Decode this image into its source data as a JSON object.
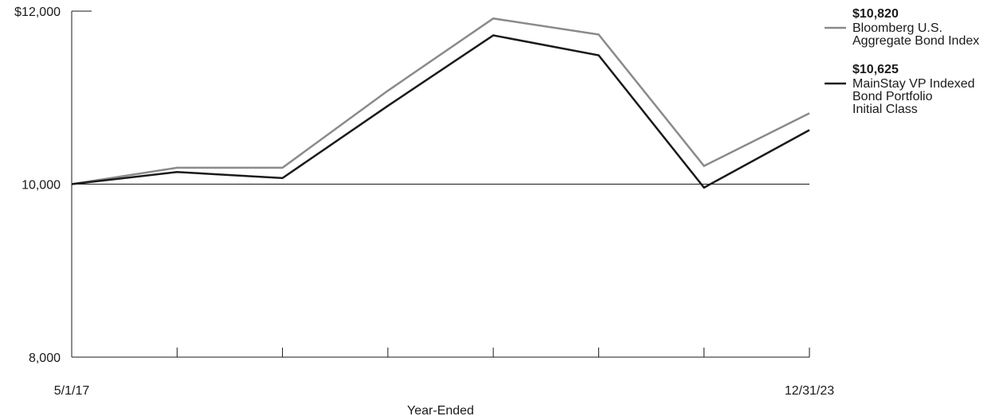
{
  "chart_data": {
    "type": "line",
    "title": "",
    "xlabel": "Year-Ended",
    "ylabel": "",
    "x_start_label": "5/1/17",
    "x_end_label": "12/31/23",
    "x_points": 8,
    "ylim": [
      8000,
      12000
    ],
    "y_ticks": [
      {
        "value": 12000,
        "label": "$12,000"
      },
      {
        "value": 10000,
        "label": "10,000"
      },
      {
        "value": 8000,
        "label": "8,000"
      }
    ],
    "reference_line": 10000,
    "series": [
      {
        "name": "Bloomberg U.S. Aggregate Bond Index",
        "legend_lines": [
          "Bloomberg U.S.",
          "Aggregate Bond Index"
        ],
        "end_value_label": "$10,820",
        "color": "#8a8a8a",
        "values": [
          10000,
          10190,
          10190,
          11080,
          11915,
          11730,
          10210,
          10820
        ]
      },
      {
        "name": "MainStay VP Indexed Bond Portfolio Initial Class",
        "legend_lines": [
          "MainStay VP Indexed",
          "Bond Portfolio",
          "Initial Class"
        ],
        "end_value_label": "$10,625",
        "color": "#1a1a1a",
        "values": [
          10000,
          10140,
          10070,
          10905,
          11720,
          11490,
          9960,
          10625
        ]
      }
    ]
  }
}
